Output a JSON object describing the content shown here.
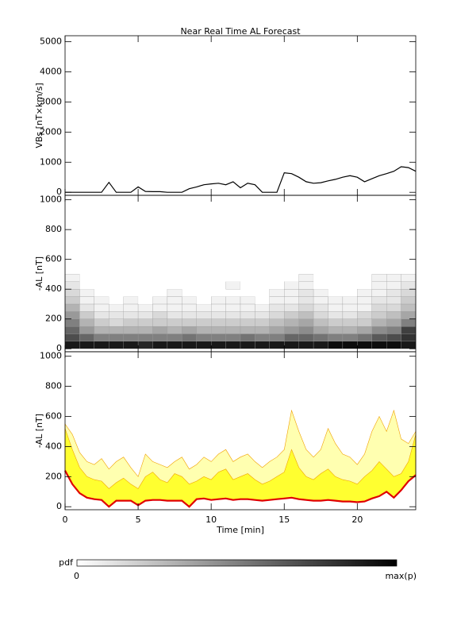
{
  "chart_data": [
    {
      "type": "line",
      "title": "Near Real Time AL Forecast",
      "ylabel": "VBs [nT×km/s]",
      "x": [
        0,
        0.5,
        1,
        1.5,
        2,
        2.5,
        3,
        3.5,
        4,
        4.5,
        5,
        5.5,
        6,
        6.5,
        7,
        7.5,
        8,
        8.5,
        9,
        9.5,
        10,
        10.5,
        11,
        11.5,
        12,
        12.5,
        13,
        13.5,
        14,
        14.5,
        15,
        15.5,
        16,
        16.5,
        17,
        17.5,
        18,
        18.5,
        19,
        19.5,
        20,
        20.5,
        21,
        21.5,
        22,
        22.5,
        23,
        23.5,
        24
      ],
      "series": [
        {
          "color": "#000000",
          "values": [
            0,
            0,
            0,
            0,
            0,
            0,
            330,
            0,
            0,
            0,
            180,
            30,
            20,
            20,
            0,
            0,
            0,
            120,
            180,
            250,
            280,
            300,
            250,
            350,
            150,
            300,
            250,
            0,
            0,
            0,
            650,
            620,
            500,
            350,
            300,
            320,
            380,
            430,
            500,
            550,
            500,
            350,
            450,
            550,
            620,
            700,
            850,
            820,
            700
          ]
        }
      ],
      "xlim": [
        0,
        24
      ],
      "xticks": [
        0,
        5,
        10,
        15,
        20
      ],
      "ylim": [
        -100,
        5200
      ],
      "yticks": [
        0,
        1000,
        2000,
        3000,
        4000,
        5000
      ]
    },
    {
      "type": "heatmap",
      "ylabel": "-AL [nT]",
      "xbins": [
        0,
        1,
        2,
        3,
        4,
        5,
        6,
        7,
        8,
        9,
        10,
        11,
        12,
        13,
        14,
        15,
        16,
        17,
        18,
        19,
        20,
        21,
        22,
        23,
        24
      ],
      "ybins": [
        0,
        50,
        100,
        150,
        200,
        250,
        300,
        350,
        400,
        450,
        500
      ],
      "z": [
        [
          0.9,
          0.7,
          0.6,
          0.5,
          0.4,
          0.3,
          0.2,
          0.15,
          0.1,
          0.05
        ],
        [
          0.9,
          0.6,
          0.4,
          0.3,
          0.2,
          0.1,
          0.05,
          0.05,
          0,
          0
        ],
        [
          0.9,
          0.5,
          0.3,
          0.2,
          0.1,
          0.05,
          0.05,
          0,
          0,
          0
        ],
        [
          0.9,
          0.5,
          0.3,
          0.15,
          0.1,
          0.05,
          0,
          0,
          0,
          0
        ],
        [
          0.9,
          0.5,
          0.3,
          0.2,
          0.1,
          0.05,
          0.05,
          0,
          0,
          0
        ],
        [
          0.85,
          0.5,
          0.3,
          0.2,
          0.1,
          0.05,
          0,
          0,
          0,
          0
        ],
        [
          0.9,
          0.5,
          0.35,
          0.2,
          0.15,
          0.05,
          0.05,
          0,
          0,
          0
        ],
        [
          0.9,
          0.5,
          0.3,
          0.2,
          0.1,
          0.05,
          0.05,
          0.05,
          0,
          0
        ],
        [
          0.9,
          0.55,
          0.35,
          0.2,
          0.1,
          0.05,
          0.05,
          0,
          0,
          0
        ],
        [
          0.9,
          0.5,
          0.3,
          0.2,
          0.1,
          0.05,
          0,
          0,
          0,
          0
        ],
        [
          0.9,
          0.5,
          0.3,
          0.2,
          0.1,
          0.05,
          0.05,
          0,
          0,
          0
        ],
        [
          0.9,
          0.5,
          0.3,
          0.2,
          0.1,
          0.05,
          0.05,
          0,
          0.05,
          0
        ],
        [
          0.9,
          0.55,
          0.3,
          0.2,
          0.1,
          0.05,
          0.05,
          0,
          0,
          0
        ],
        [
          0.9,
          0.5,
          0.3,
          0.2,
          0.1,
          0.05,
          0,
          0,
          0,
          0
        ],
        [
          0.9,
          0.5,
          0.35,
          0.25,
          0.15,
          0.1,
          0.05,
          0.05,
          0,
          0
        ],
        [
          0.9,
          0.6,
          0.4,
          0.3,
          0.2,
          0.1,
          0.05,
          0.05,
          0.05,
          0
        ],
        [
          0.9,
          0.6,
          0.45,
          0.35,
          0.25,
          0.15,
          0.1,
          0.1,
          0.05,
          0.05
        ],
        [
          0.9,
          0.55,
          0.35,
          0.25,
          0.15,
          0.1,
          0.05,
          0.05,
          0,
          0
        ],
        [
          0.95,
          0.5,
          0.3,
          0.2,
          0.1,
          0.05,
          0.05,
          0,
          0,
          0
        ],
        [
          0.95,
          0.5,
          0.3,
          0.2,
          0.1,
          0.05,
          0.05,
          0,
          0,
          0
        ],
        [
          0.95,
          0.55,
          0.35,
          0.2,
          0.15,
          0.05,
          0.05,
          0.05,
          0,
          0
        ],
        [
          0.95,
          0.65,
          0.45,
          0.3,
          0.2,
          0.15,
          0.1,
          0.05,
          0.05,
          0.05
        ],
        [
          0.95,
          0.7,
          0.5,
          0.35,
          0.25,
          0.15,
          0.1,
          0.1,
          0.05,
          0.05
        ],
        [
          0.9,
          0.8,
          0.75,
          0.5,
          0.35,
          0.25,
          0.2,
          0.15,
          0.1,
          0.05
        ]
      ],
      "xlim": [
        0,
        24
      ],
      "xticks": [
        0,
        5,
        10,
        15,
        20
      ],
      "ylim": [
        -20,
        1030
      ],
      "yticks": [
        0,
        200,
        400,
        600,
        800,
        1000
      ]
    },
    {
      "type": "band",
      "ylabel": "-AL [nT]",
      "xlabel": "Time [min]",
      "x": [
        0,
        0.5,
        1,
        1.5,
        2,
        2.5,
        3,
        3.5,
        4,
        4.5,
        5,
        5.5,
        6,
        6.5,
        7,
        7.5,
        8,
        8.5,
        9,
        9.5,
        10,
        10.5,
        11,
        11.5,
        12,
        12.5,
        13,
        13.5,
        14,
        14.5,
        15,
        15.5,
        16,
        16.5,
        17,
        17.5,
        18,
        18.5,
        19,
        19.5,
        20,
        20.5,
        21,
        21.5,
        22,
        22.5,
        23,
        23.5,
        24
      ],
      "series": [
        {
          "color": "#e00000",
          "values": [
            240,
            150,
            90,
            60,
            50,
            45,
            0,
            40,
            40,
            40,
            10,
            40,
            45,
            45,
            40,
            40,
            40,
            0,
            50,
            55,
            45,
            50,
            55,
            45,
            50,
            50,
            45,
            40,
            45,
            50,
            55,
            60,
            50,
            45,
            40,
            40,
            45,
            40,
            35,
            35,
            30,
            35,
            55,
            70,
            100,
            60,
            110,
            170,
            210
          ]
        },
        {
          "color": "#ffff30",
          "values": [
            520,
            380,
            260,
            200,
            180,
            170,
            120,
            160,
            190,
            150,
            120,
            200,
            230,
            180,
            160,
            220,
            200,
            150,
            170,
            200,
            180,
            230,
            250,
            180,
            200,
            220,
            180,
            150,
            170,
            200,
            230,
            380,
            260,
            200,
            180,
            220,
            250,
            200,
            180,
            170,
            150,
            200,
            240,
            300,
            250,
            200,
            220,
            300,
            480
          ]
        },
        {
          "color": "#ffffb0",
          "values": [
            550,
            480,
            360,
            300,
            280,
            320,
            250,
            300,
            330,
            260,
            200,
            350,
            300,
            280,
            260,
            300,
            330,
            250,
            280,
            330,
            300,
            350,
            380,
            300,
            330,
            350,
            300,
            260,
            300,
            330,
            380,
            640,
            500,
            380,
            330,
            380,
            520,
            420,
            350,
            330,
            280,
            350,
            500,
            600,
            500,
            640,
            450,
            420,
            500
          ]
        }
      ],
      "xlim": [
        0,
        24
      ],
      "xticks": [
        0,
        5,
        10,
        15,
        20
      ],
      "ylim": [
        -20,
        1030
      ],
      "yticks": [
        0,
        200,
        400,
        600,
        800,
        1000
      ]
    }
  ],
  "colorbar": {
    "label": "pdf",
    "min_label": "0",
    "max_label": "max(p)"
  }
}
